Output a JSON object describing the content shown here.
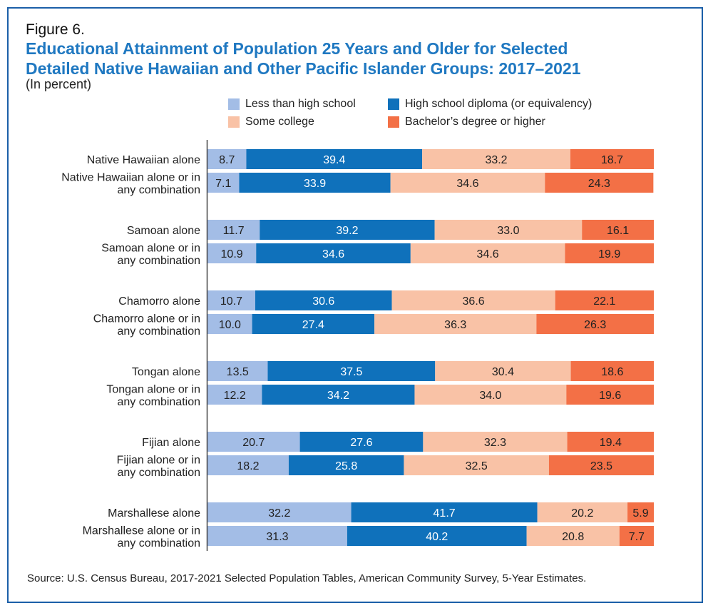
{
  "figure_label": "Figure 6.",
  "title_lines": [
    "Educational Attainment of Population 25 Years and Older for Selected",
    "Detailed Native Hawaiian and Other Pacific Islander Groups: 2017–2021"
  ],
  "subtitle": "(In percent)",
  "source": "Source: U.S. Census Bureau, 2017-2021 Selected Population Tables, American Community Survey, 5-Year Estimates.",
  "chart_data": {
    "type": "bar",
    "orientation": "horizontal",
    "stacked": true,
    "title": "Educational Attainment of Population 25 Years and Older for Selected Detailed Native Hawaiian and Other Pacific Islander Groups: 2017–2021",
    "subtitle": "(In percent)",
    "xlabel": "",
    "ylabel": "",
    "xlim": [
      0,
      100
    ],
    "grid": false,
    "legend_position": "top",
    "categories": [
      [
        "Native Hawaiian alone"
      ],
      [
        "Native Hawaiian alone or in",
        "any combination"
      ],
      [
        "Samoan alone"
      ],
      [
        "Samoan alone or in",
        "any combination"
      ],
      [
        "Chamorro alone"
      ],
      [
        "Chamorro alone or in",
        "any combination"
      ],
      [
        "Tongan alone"
      ],
      [
        "Tongan alone or in",
        "any combination"
      ],
      [
        "Fijian alone"
      ],
      [
        "Fijian alone or in",
        "any combination"
      ],
      [
        "Marshallese alone"
      ],
      [
        "Marshallese alone or in",
        "any combination"
      ]
    ],
    "series": [
      {
        "name": "Less than high school",
        "color": "#a3bde6",
        "label_color": "#222222",
        "values": [
          8.7,
          7.1,
          11.7,
          10.9,
          10.7,
          10.0,
          13.5,
          12.2,
          20.7,
          18.2,
          32.2,
          31.3
        ]
      },
      {
        "name": "High school diploma (or equivalency)",
        "color": "#0f71bb",
        "label_color": "#ffffff",
        "values": [
          39.4,
          33.9,
          39.2,
          34.6,
          30.6,
          27.4,
          37.5,
          34.2,
          27.6,
          25.8,
          41.7,
          40.2
        ]
      },
      {
        "name": "Some college",
        "color": "#f9c2a6",
        "label_color": "#222222",
        "values": [
          33.2,
          34.6,
          33.0,
          34.6,
          36.6,
          36.3,
          30.4,
          34.0,
          32.3,
          32.5,
          20.2,
          20.8
        ]
      },
      {
        "name": "Bachelor’s degree or higher",
        "color": "#f37046",
        "label_color": "#222222",
        "values": [
          18.7,
          24.3,
          16.1,
          19.9,
          22.1,
          26.3,
          18.6,
          19.6,
          19.4,
          23.5,
          5.9,
          7.7
        ]
      }
    ]
  }
}
